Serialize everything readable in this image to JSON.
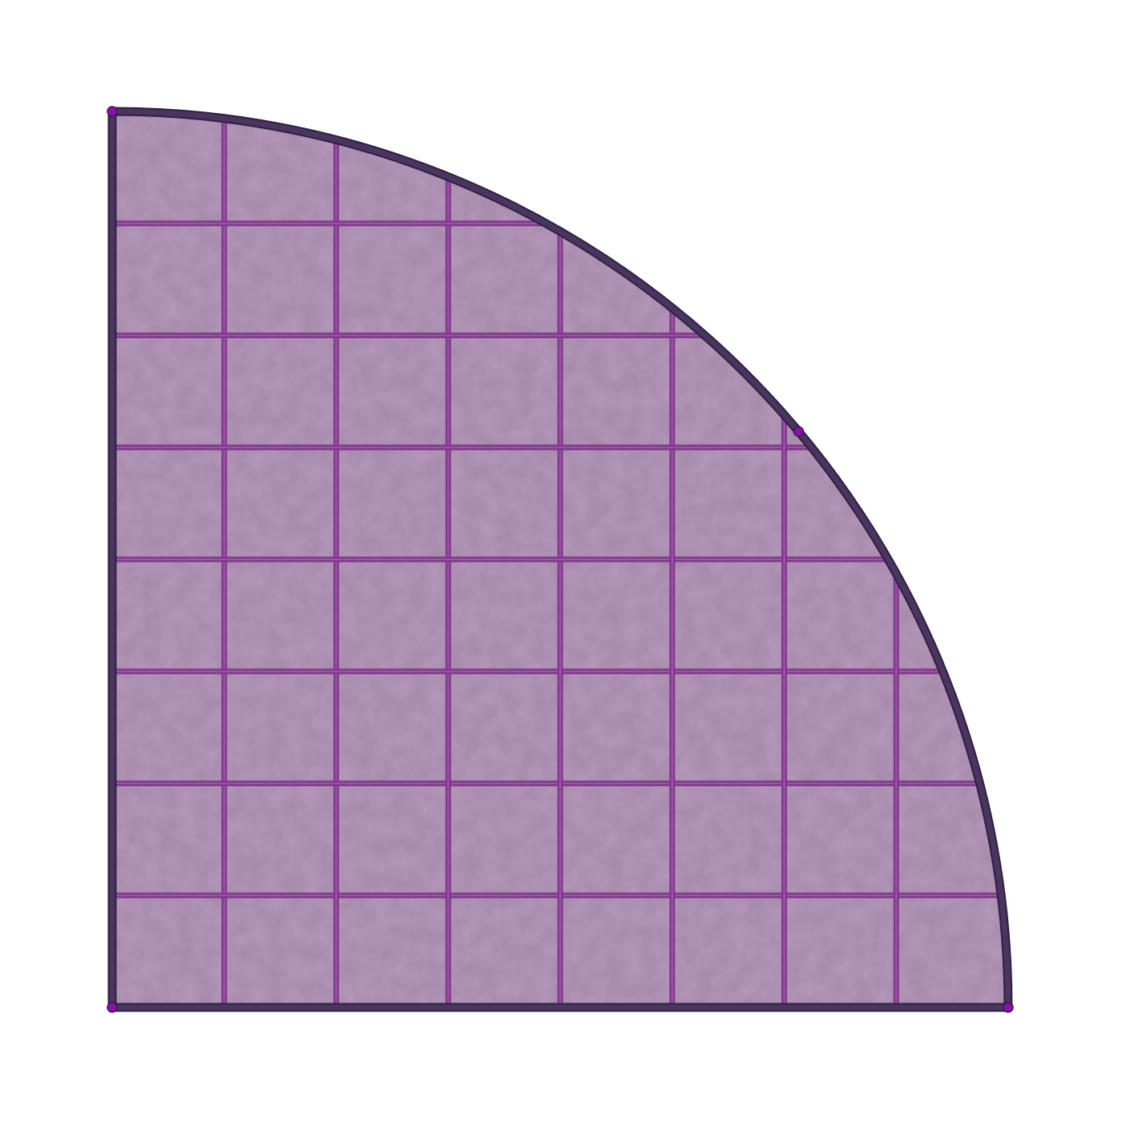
{
  "figure": {
    "shape": "quarter-circle",
    "grid_cells_per_side": 8,
    "vertex_markers": 4
  },
  "colors": {
    "background": "#ffffff",
    "fill": "#9b7aa0",
    "fill_light": "#a88bad",
    "outline": "#4a3560",
    "grid_line": "#7c3c86",
    "grid_highlight": "#b454c0",
    "marker": "#8a12a8"
  }
}
